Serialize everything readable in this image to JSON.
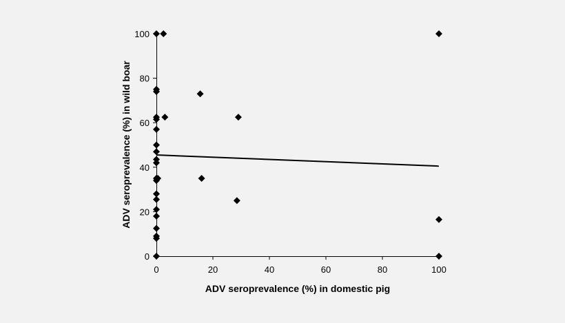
{
  "chart_data": {
    "type": "scatter",
    "title": "",
    "xlabel": "ADV seroprevalence (%) in domestic pig",
    "ylabel": "ADV seroprevalence (%) in wild boar",
    "xlim": [
      0,
      100
    ],
    "ylim": [
      0,
      100
    ],
    "x_ticks": [
      0,
      20,
      40,
      60,
      80,
      100
    ],
    "y_ticks": [
      0,
      20,
      40,
      60,
      80,
      100
    ],
    "grid": false,
    "marker_color": "#000000",
    "points": [
      {
        "x": 0,
        "y": 100
      },
      {
        "x": 2.5,
        "y": 100
      },
      {
        "x": 100,
        "y": 100
      },
      {
        "x": 0,
        "y": 75
      },
      {
        "x": 0,
        "y": 74
      },
      {
        "x": 15.5,
        "y": 73
      },
      {
        "x": 0,
        "y": 62.5
      },
      {
        "x": 0,
        "y": 61.5
      },
      {
        "x": 3,
        "y": 62.5
      },
      {
        "x": 29,
        "y": 62.5
      },
      {
        "x": 0,
        "y": 57
      },
      {
        "x": 0,
        "y": 50
      },
      {
        "x": 0,
        "y": 47
      },
      {
        "x": 0,
        "y": 43.5
      },
      {
        "x": 0,
        "y": 42
      },
      {
        "x": 0,
        "y": 35
      },
      {
        "x": 0,
        "y": 34
      },
      {
        "x": 0.5,
        "y": 35
      },
      {
        "x": 16,
        "y": 35
      },
      {
        "x": 0,
        "y": 28
      },
      {
        "x": 0,
        "y": 25.5
      },
      {
        "x": 28.5,
        "y": 25
      },
      {
        "x": 0,
        "y": 21
      },
      {
        "x": 0,
        "y": 18
      },
      {
        "x": 0,
        "y": 12.5
      },
      {
        "x": 0,
        "y": 9
      },
      {
        "x": 0,
        "y": 8
      },
      {
        "x": 0,
        "y": 0
      },
      {
        "x": 100,
        "y": 16.5
      },
      {
        "x": 100,
        "y": 0
      }
    ],
    "trendline": {
      "x": [
        0,
        100
      ],
      "y": [
        45.5,
        40.5
      ],
      "color": "#000000"
    }
  }
}
